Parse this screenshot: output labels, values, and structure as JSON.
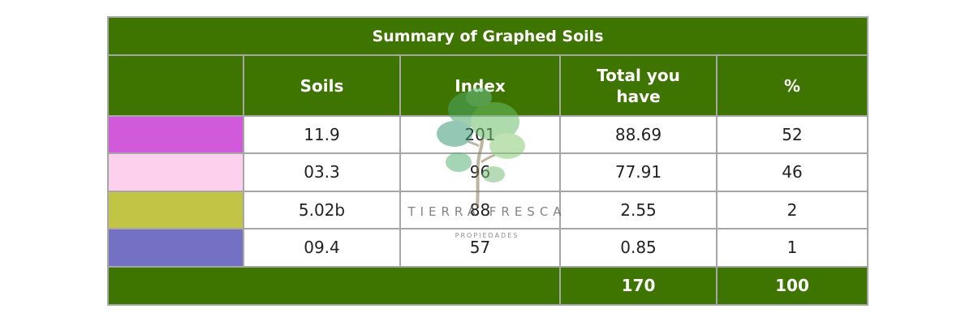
{
  "table": {
    "title": "Summary of Graphed Soils",
    "headers": [
      "",
      "Soils",
      "Index",
      "Total you have",
      "%"
    ],
    "rows": [
      {
        "color": "#d05ada",
        "soils": "11.9",
        "index": "201",
        "total": "88.69",
        "pct": "52"
      },
      {
        "color": "#fdd1ee",
        "soils": "03.3",
        "index": "96",
        "total": "77.91",
        "pct": "46"
      },
      {
        "color": "#c1c445",
        "soils": "5.02b",
        "index": "88",
        "total": "2.55",
        "pct": "2"
      },
      {
        "color": "#7470c4",
        "soils": "09.4",
        "index": "57",
        "total": "0.85",
        "pct": "1"
      }
    ],
    "footer": {
      "total": "170",
      "pct": "100"
    }
  },
  "watermark": {
    "name": "TIERRA FRESCA",
    "tagline": "PROPIEDADES"
  },
  "colors": {
    "header_bg": "#3e7400",
    "border": "#a6a6a6"
  }
}
